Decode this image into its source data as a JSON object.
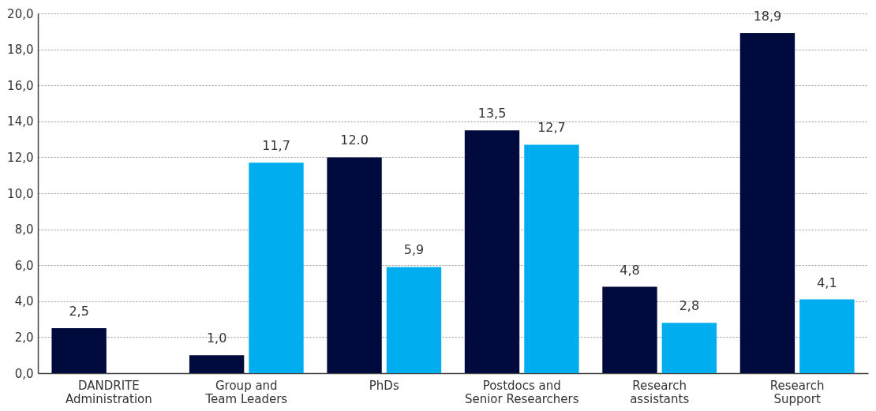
{
  "chart_data": {
    "type": "bar",
    "categories": [
      "DANDRITE Administration",
      "Group and Team Leaders",
      "PhDs",
      "Postdocs and Senior Researchers",
      "Research assistants",
      "Research Support"
    ],
    "series": [
      {
        "color": "#000a3c",
        "values": [
          2.5,
          1.0,
          12.0,
          13.5,
          4.8,
          18.9
        ],
        "value_labels": [
          "2,5",
          "1,0",
          "12.0",
          "13,5",
          "4,8",
          "18,9"
        ]
      },
      {
        "color": "#00adef",
        "values": [
          null,
          11.7,
          5.9,
          12.7,
          2.8,
          4.1
        ],
        "value_labels": [
          null,
          "11,7",
          "5,9",
          "12,7",
          "2,8",
          "4,1"
        ]
      }
    ],
    "ylim": [
      0,
      20
    ],
    "yticks": [
      {
        "value": 0,
        "label": "0,0"
      },
      {
        "value": 2,
        "label": "2,0"
      },
      {
        "value": 4,
        "label": "4,0"
      },
      {
        "value": 6,
        "label": "6,0"
      },
      {
        "value": 8,
        "label": "8,0"
      },
      {
        "value": 10,
        "label": "10,0"
      },
      {
        "value": 12,
        "label": "12,0"
      },
      {
        "value": 14,
        "label": "14,0"
      },
      {
        "value": 16,
        "label": "16,0"
      },
      {
        "value": 18,
        "label": "18,0"
      },
      {
        "value": 20,
        "label": "20,0"
      }
    ],
    "grid": "y",
    "legend": false
  }
}
